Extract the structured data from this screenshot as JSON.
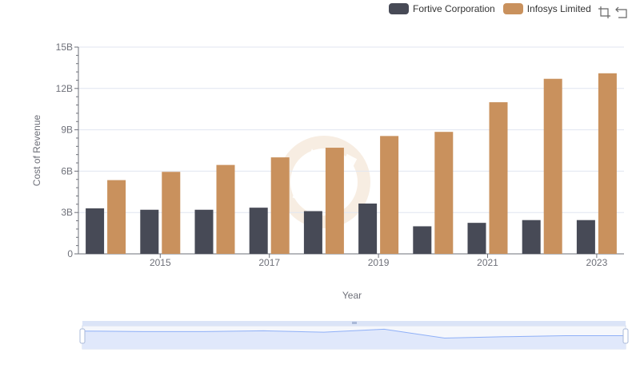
{
  "colors": {
    "series": [
      "#474a56",
      "#c9915d"
    ],
    "grid": "#e0e6f1",
    "axis": "#6e7079",
    "text": "#6e7079",
    "zoom_fill": "#e0e8fb",
    "zoom_line": "#8fb0f7",
    "watermark": "#f3e6d6"
  },
  "toolbox": {
    "zoom_icon": "data-zoom-icon",
    "reset_icon": "zoom-reset-icon"
  },
  "chart_data": {
    "type": "bar",
    "ylabel": "Cost of Revenue",
    "xlabel": "Year",
    "y_ticks": [
      "0",
      "3B",
      "6B",
      "9B",
      "12B",
      "15B"
    ],
    "ylim": [
      0,
      15
    ],
    "y_unit": "billions",
    "x_tick_labels": [
      "2015",
      "2017",
      "2019",
      "2021",
      "2023"
    ],
    "categories": [
      "2014",
      "2015",
      "2016",
      "2017",
      "2018",
      "2019",
      "2020",
      "2021",
      "2022",
      "2023"
    ],
    "series": [
      {
        "name": "Fortive Corporation",
        "values": [
          3.3,
          3.2,
          3.2,
          3.35,
          3.1,
          3.65,
          2.0,
          2.25,
          2.45,
          2.45
        ]
      },
      {
        "name": "Infosys Limited",
        "values": [
          5.35,
          5.95,
          6.45,
          7.0,
          7.7,
          8.55,
          8.85,
          11.0,
          12.7,
          13.1
        ]
      }
    ],
    "grid": true,
    "legend_position": "top-right",
    "zoom_slider": true
  }
}
